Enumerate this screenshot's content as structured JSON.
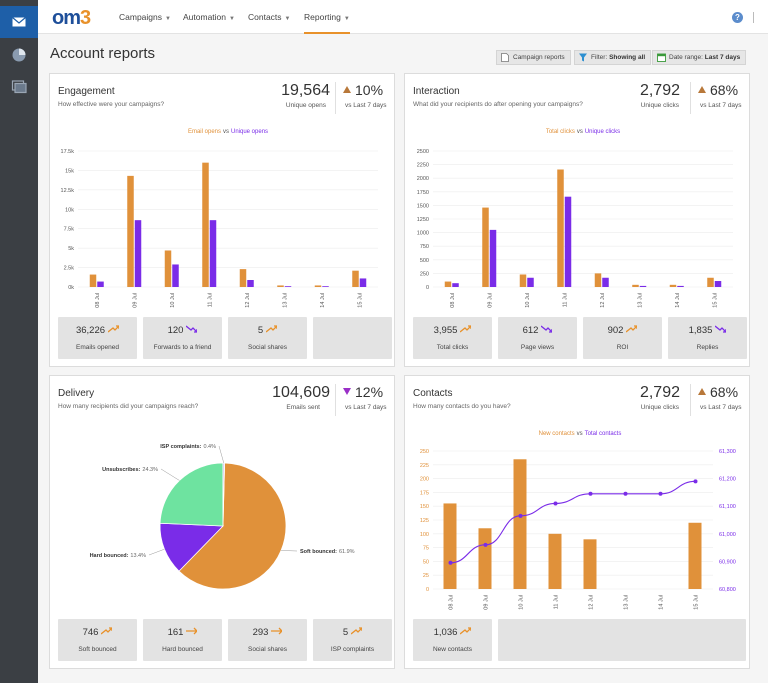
{
  "nav": {
    "logo_a": "om",
    "logo_b": "3",
    "campaigns": "Campaigns",
    "automation": "Automation",
    "contacts": "Contacts",
    "reporting": "Reporting",
    "help": "?"
  },
  "page": {
    "title": "Account reports",
    "btn_campaign": "Campaign reports",
    "btn_filter_label": "Filter:",
    "btn_filter_value": "Showing all",
    "btn_date_label": "Date range:",
    "btn_date_value": "Last 7 days"
  },
  "colors": {
    "orange": "#e0913a",
    "purple": "#7a2ce8",
    "accent": "#e8912a"
  },
  "engagement": {
    "title": "Engagement",
    "subtitle": "How effective were your campaigns?",
    "big": "19,564",
    "big_label": "Unique opens",
    "pct": "10%",
    "pct_label": "vs Last 7 days",
    "stats": [
      {
        "value": "36,226",
        "label": "Emails opened",
        "trend": "up"
      },
      {
        "value": "120",
        "label": "Forwards to a friend",
        "trend": "down"
      },
      {
        "value": "5",
        "label": "Social shares",
        "trend": "up"
      }
    ]
  },
  "interaction": {
    "title": "Interaction",
    "subtitle": "What did your recipients do after opening your campaigns?",
    "big": "2,792",
    "big_label": "Unique clicks",
    "pct": "68%",
    "pct_label": "vs Last 7 days",
    "stats": [
      {
        "value": "3,955",
        "label": "Total clicks",
        "trend": "up"
      },
      {
        "value": "612",
        "label": "Page views",
        "trend": "down"
      },
      {
        "value": "902",
        "label": "ROI",
        "trend": "up"
      },
      {
        "value": "1,835",
        "label": "Replies",
        "trend": "down"
      }
    ]
  },
  "delivery": {
    "title": "Delivery",
    "subtitle": "How many recipients did your campaigns reach?",
    "big": "104,609",
    "big_label": "Emails sent",
    "pct": "12%",
    "pct_label": "vs Last 7 days",
    "stats": [
      {
        "value": "746",
        "label": "Soft bounced",
        "trend": "up"
      },
      {
        "value": "161",
        "label": "Hard bounced",
        "trend": "flat"
      },
      {
        "value": "293",
        "label": "Social shares",
        "trend": "flat"
      },
      {
        "value": "5",
        "label": "ISP complaints",
        "trend": "up"
      }
    ]
  },
  "contacts": {
    "title": "Contacts",
    "subtitle": "How many contacts do you have?",
    "big": "2,792",
    "big_label": "Unique clicks",
    "pct": "68%",
    "pct_label": "vs Last 7 days",
    "stats": [
      {
        "value": "1,036",
        "label": "New contacts",
        "trend": "up"
      }
    ]
  },
  "chart_data": [
    {
      "id": "engagement",
      "type": "bar",
      "legend_a": "Email opens",
      "legend_vs": "vs",
      "legend_b": "Unique opens",
      "categories": [
        "08 Jul",
        "09 Jul",
        "10 Jul",
        "11 Jul",
        "12 Jul",
        "13 Jul",
        "14 Jul",
        "15 Jul"
      ],
      "ytick_labels": [
        "0k",
        "2.5k",
        "5k",
        "7.5k",
        "10k",
        "12.5k",
        "15k",
        "17.5k"
      ],
      "ylim": [
        0,
        17500
      ],
      "series": [
        {
          "name": "Email opens",
          "values": [
            1600,
            14300,
            4700,
            16000,
            2300,
            200,
            200,
            2100
          ]
        },
        {
          "name": "Unique opens",
          "values": [
            700,
            8600,
            2900,
            8600,
            900,
            100,
            100,
            1100
          ]
        }
      ]
    },
    {
      "id": "interaction",
      "type": "bar",
      "legend_a": "Total clicks",
      "legend_vs": "vs",
      "legend_b": "Unique clicks",
      "categories": [
        "08 Jul",
        "09 Jul",
        "10 Jul",
        "11 Jul",
        "12 Jul",
        "13 Jul",
        "14 Jul",
        "15 Jul"
      ],
      "ytick_labels": [
        "0",
        "250",
        "500",
        "750",
        "1000",
        "1250",
        "1500",
        "1750",
        "2000",
        "2250",
        "2500"
      ],
      "ylim": [
        0,
        2500
      ],
      "series": [
        {
          "name": "Total clicks",
          "values": [
            100,
            1460,
            230,
            2160,
            250,
            40,
            40,
            170
          ]
        },
        {
          "name": "Unique clicks",
          "values": [
            70,
            1050,
            170,
            1660,
            170,
            20,
            20,
            110
          ]
        }
      ]
    },
    {
      "id": "delivery",
      "type": "pie",
      "slices": [
        {
          "label": "Soft bounced:",
          "pct": "61.9%",
          "value": 61.9
        },
        {
          "label": "Hard bounced:",
          "pct": "13.4%",
          "value": 13.4
        },
        {
          "label": "Unsubscribes:",
          "pct": "24.3%",
          "value": 24.3
        },
        {
          "label": "ISP complaints:",
          "pct": "0.4%",
          "value": 0.4
        }
      ]
    },
    {
      "id": "contacts",
      "type": "bar+line",
      "legend_a": "New contacts",
      "legend_vs": "vs",
      "legend_b": "Total contacts",
      "categories": [
        "08 Jul",
        "09 Jul",
        "10 Jul",
        "11 Jul",
        "12 Jul",
        "13 Jul",
        "14 Jul",
        "15 Jul"
      ],
      "ytick_labels": [
        "0",
        "25",
        "50",
        "75",
        "100",
        "125",
        "150",
        "175",
        "200",
        "225",
        "250"
      ],
      "ylim": [
        0,
        250
      ],
      "ytick2_labels": [
        "60,800",
        "60,900",
        "61,000",
        "61,100",
        "61,200",
        "61,300"
      ],
      "ylim2": [
        60800,
        61300
      ],
      "bars": [
        155,
        110,
        235,
        100,
        90,
        0,
        0,
        120
      ],
      "line": [
        60895,
        60960,
        61065,
        61110,
        61145,
        61145,
        61145,
        61190
      ]
    }
  ]
}
